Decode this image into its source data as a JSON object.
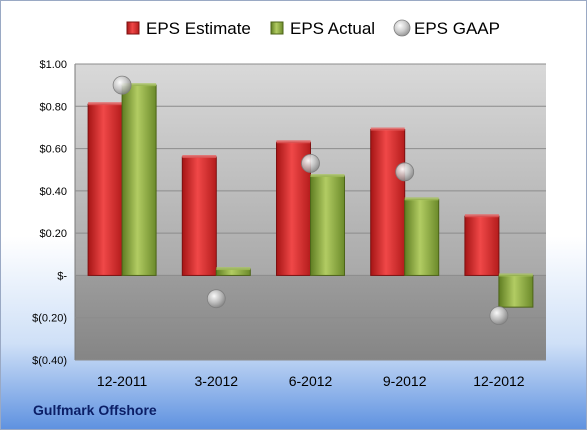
{
  "company_label": "Gulfmark Offshore",
  "chart_data": {
    "type": "bar",
    "title": "",
    "xlabel": "",
    "ylabel": "",
    "categories": [
      "12-2011",
      "3-2012",
      "6-2012",
      "9-2012",
      "12-2012"
    ],
    "series": [
      {
        "name": "EPS Estimate",
        "kind": "bar",
        "color": "#d42b2b",
        "values": [
          0.81,
          0.56,
          0.63,
          0.69,
          0.28
        ]
      },
      {
        "name": "EPS Actual",
        "kind": "bar",
        "color": "#8aaa3c",
        "values": [
          0.9,
          0.03,
          0.47,
          0.36,
          -0.15
        ]
      },
      {
        "name": "EPS GAAP",
        "kind": "marker",
        "color": "#b9b9b9",
        "values": [
          0.9,
          -0.11,
          0.53,
          0.49,
          -0.19
        ]
      }
    ],
    "ylim": [
      -0.4,
      1.0
    ],
    "yticks": [
      1.0,
      0.8,
      0.6,
      0.4,
      0.2,
      0,
      -0.2,
      -0.4
    ],
    "ytick_labels": [
      "$1.00",
      "$0.80",
      "$0.60",
      "$0.40",
      "$0.20",
      "$-",
      "$(0.20)",
      "$(0.40)"
    ],
    "grid": true,
    "legend_position": "top"
  }
}
